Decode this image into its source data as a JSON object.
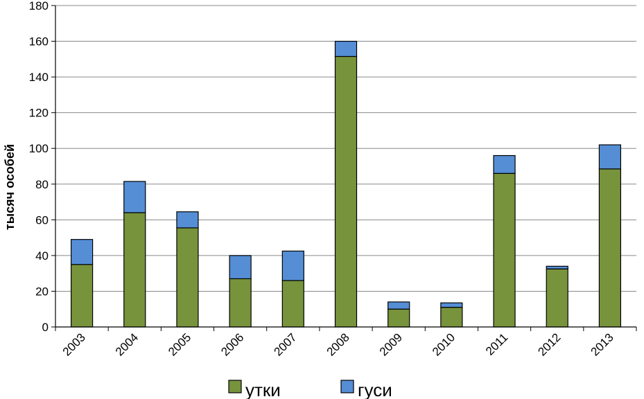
{
  "chart_data": {
    "type": "bar",
    "stacked": true,
    "categories": [
      "2003",
      "2004",
      "2005",
      "2006",
      "2007",
      "2008",
      "2009",
      "2010",
      "2011",
      "2012",
      "2013"
    ],
    "series": [
      {
        "name": "утки",
        "color": "#77933c",
        "values": [
          35,
          64,
          55.5,
          27,
          26,
          151.5,
          10,
          11,
          86,
          32.5,
          88.5
        ]
      },
      {
        "name": "гуси",
        "color": "#558ed5",
        "values": [
          14,
          17.5,
          9,
          13,
          16.5,
          8.5,
          4,
          2.5,
          10,
          1.5,
          13.5
        ]
      }
    ],
    "title": "",
    "xlabel": "",
    "ylabel": "тысяч особей",
    "ylim": [
      0,
      180
    ],
    "yticks": [
      0,
      20,
      40,
      60,
      80,
      100,
      120,
      140,
      160,
      180
    ],
    "grid": "horizontal",
    "legend_position": "bottom"
  }
}
